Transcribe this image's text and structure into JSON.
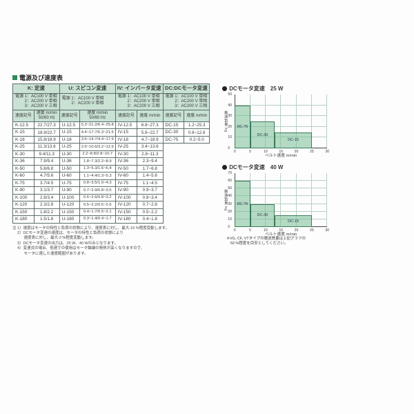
{
  "title": "電源及び速度表",
  "blocks": {
    "K": {
      "header": "K: 定速",
      "ps": [
        "電源 1：AC100 V 単相",
        "　　 2：AC200 V 単相",
        "　　 3：AC200 V 三相"
      ],
      "h2a": "速度記号",
      "h2b": "速度 m/min\n50/60 Hz"
    },
    "U": {
      "header": "U: スピコン変速",
      "ps": [
        "電源 1：AC100 V 単相",
        "　　 2：AC200 V 単相"
      ],
      "h2a": "速度記号",
      "h2b": "速度 m/min\n50/60 Hz"
    },
    "IV": {
      "header": "IV: インバータ変速",
      "ps": [
        "電源 1：AC100 V 単相",
        "　　 2：AC200 V 単相",
        "　　 3：AC200 V 三相"
      ],
      "h2a": "速度記号",
      "h2b": "速度 m/min"
    },
    "DC": {
      "header": "DC:DCモータ変速",
      "ps": [
        "電源 1：AC100 V 単相",
        "　　 2：AC200 V 単相",
        "　　 3：AC200 V 三相"
      ],
      "h2a": "速度記号",
      "h2b": "速度 m/min"
    }
  },
  "rows": [
    {
      "k": "K-12.5",
      "kv": "22.7/27.3",
      "u": "U-12.5",
      "uv": "5.3~21.2/6.4~25.8",
      "iv": "IV-12.5",
      "ivv": "6.8~27.3",
      "dc": "DC-15",
      "dcv": "1.2~25.3"
    },
    {
      "k": "K-15",
      "kv": "18.9/22.7",
      "u": "U-15",
      "uv": "4.4~17.7/5.3~21.5",
      "iv": "IV-15",
      "ivv": "5.6~22.7",
      "dc": "DC-30",
      "dcv": "0.6~12.6"
    },
    {
      "k": "K-18",
      "kv": "15.8/18.9",
      "u": "U-18",
      "uv": "3.6~14.7/4.4~17.9",
      "iv": "IV-18",
      "ivv": "4.7~18.9",
      "dc": "DC-75",
      "dcv": "0.2~5.0"
    },
    {
      "k": "K-25",
      "kv": "11.3/13.6",
      "u": "U-25",
      "uv": "2.6~10.6/3.2~12.9",
      "iv": "IV-25",
      "ivv": "3.4~13.6"
    },
    {
      "k": "K-30",
      "kv": "9.4/11.3",
      "u": "U-30",
      "uv": "2.2~8.8/2.8~10.7",
      "iv": "IV-30",
      "ivv": "2.8~11.3"
    },
    {
      "k": "K-36",
      "kv": "7.9/9.4",
      "u": "U-36",
      "uv": "1.8~7.3/2.2~8.9",
      "iv": "IV-36",
      "ivv": "2.3~9.4"
    },
    {
      "k": "K-50",
      "kv": "5.6/6.8",
      "u": "U-50",
      "uv": "1.3~5.3/1.6~6.4",
      "iv": "IV-50",
      "ivv": "1.7~6.8"
    },
    {
      "k": "K-60",
      "kv": "4.7/5.6",
      "u": "U-60",
      "uv": "1.1~4.4/1.3~5.3",
      "iv": "IV-60",
      "ivv": "1.4~5.6"
    },
    {
      "k": "K-75",
      "kv": "3.7/4.5",
      "u": "U-75",
      "uv": "0.8~3.5/1.0~4.3",
      "iv": "IV-75",
      "ivv": "1.1~4.5"
    },
    {
      "k": "K-90",
      "kv": "3.1/3.7",
      "u": "U-90",
      "uv": "0.7~2.9/0.8~3.5",
      "iv": "IV-90",
      "ivv": "0.9~3.7"
    },
    {
      "k": "K-100",
      "kv": "2.8/3.4",
      "u": "U-100",
      "uv": "0.6~2.6/0.8~3.2",
      "iv": "IV-100",
      "ivv": "0.8~3.4"
    },
    {
      "k": "K-120",
      "kv": "2.3/2.8",
      "u": "U-120",
      "uv": "0.5~2.2/0.6~2.6",
      "iv": "IV-120",
      "ivv": "0.7~2.8"
    },
    {
      "k": "K-150",
      "kv": "1.8/2.2",
      "u": "U-150",
      "uv": "0.4~1.7/0.5~2.1",
      "iv": "IV-150",
      "ivv": "0.5~2.2"
    },
    {
      "k": "K-180",
      "kv": "1.5/1.8",
      "u": "U-180",
      "uv": "0.3~1.4/0.4~1.7",
      "iv": "IV-180",
      "ivv": "0.4~1.8"
    }
  ],
  "notes": [
    "注 1）速度はモータの特性と負荷の状態により、速度表に対し、最大-10 %程度変動します。",
    "　 2）DCモータ変速の速度は、モータの特性と負荷の状態により",
    "　　　速度表に対し、最大-2 %程度変動します。",
    "　 3）DCモータ変速の出力は、25 W、40 Wのみとなります。",
    "　 4）変速式の場合、低速での使用はモータ軸端の発熱が高くなりますので、",
    "　　　モータに適した速度範囲があります。"
  ],
  "charts": {
    "c25": {
      "title": "DCモータ変速　25 W",
      "ylabel": "搬送質量 kg",
      "xlabel": "ベルト速度 m/min",
      "ylim": [
        0,
        50
      ],
      "yticks": [
        0,
        10,
        20,
        30,
        40,
        50
      ],
      "xlim": [
        0,
        30
      ],
      "xticks": [
        0,
        5,
        10,
        15,
        20,
        25,
        30
      ],
      "bg": "#ffffff",
      "grid": "#b6cfc4",
      "fill": "rgba(120,190,150,0.55)",
      "stroke": "#3a7a58",
      "steps": [
        {
          "label": "DC-75",
          "x": [
            0,
            5
          ],
          "y": [
            0,
            40
          ]
        },
        {
          "label": "DC-30",
          "x": [
            5,
            13
          ],
          "y": [
            0,
            25
          ]
        },
        {
          "label": "DC-15",
          "x": [
            13,
            25
          ],
          "y": [
            0,
            15
          ]
        }
      ]
    },
    "c40": {
      "title": "DCモータ変速　40 W",
      "ylabel": "搬送質量 kg",
      "xlabel": "ベルト速度 m/min",
      "ylim": [
        0,
        70
      ],
      "yticks": [
        0,
        10,
        20,
        30,
        40,
        50,
        60,
        70
      ],
      "xlim": [
        0,
        30
      ],
      "xticks": [
        0,
        5,
        10,
        15,
        20,
        25,
        30
      ],
      "bg": "#ffffff",
      "grid": "#b6cfc4",
      "fill": "rgba(120,190,150,0.55)",
      "stroke": "#3a7a58",
      "steps": [
        {
          "label": "DC-75",
          "x": [
            0,
            5
          ],
          "y": [
            0,
            60
          ]
        },
        {
          "label": "DC-30",
          "x": [
            5,
            13
          ],
          "y": [
            0,
            30
          ]
        },
        {
          "label": "DC-15",
          "x": [
            13,
            25
          ],
          "y": [
            0,
            15
          ]
        }
      ]
    }
  },
  "footnote": "※VG, CF, VTタイプの搬送質量は上記グラフの\n　50 %程度を目安としてください。",
  "colors": {
    "brand": "#2f8a5c",
    "thBg": "#c9e2d4",
    "border": "#5b6b6b"
  }
}
